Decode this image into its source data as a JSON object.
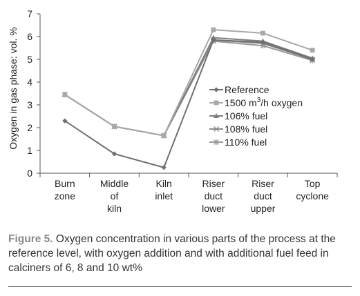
{
  "chart_data": {
    "type": "line",
    "ylabel": "Oxygen in gas phase: vol. %",
    "ylim": [
      0,
      7
    ],
    "yticks": [
      "0",
      "1",
      "2",
      "3",
      "4",
      "5",
      "6",
      "7"
    ],
    "categories": [
      [
        "Burn",
        "zone"
      ],
      [
        "Middle",
        "of",
        "kiln"
      ],
      [
        "Kiln",
        "inlet"
      ],
      [
        "Riser",
        "duct",
        "lower"
      ],
      [
        "Riser",
        "duct",
        "upper"
      ],
      [
        "Top",
        "cyclone"
      ]
    ],
    "legend_position": "center-right",
    "series": [
      {
        "name": "Reference",
        "legend_parts": [
          "Reference",
          "",
          ""
        ],
        "color": "#6f6f6f",
        "marker": "diamond",
        "values": [
          2.3,
          0.85,
          0.25,
          5.85,
          5.75,
          5.0
        ]
      },
      {
        "name": "1500 m3/h oxygen",
        "legend_parts": [
          "1500 m",
          "3",
          "/h oxygen"
        ],
        "color": "#a8a8a8",
        "marker": "square",
        "values": [
          3.45,
          2.05,
          1.65,
          6.3,
          6.15,
          5.4
        ]
      },
      {
        "name": "106% fuel",
        "legend_parts": [
          "106% fuel",
          "",
          ""
        ],
        "color": "#7d7d7d",
        "marker": "triangle",
        "values": [
          3.45,
          2.05,
          1.65,
          5.95,
          5.8,
          5.05
        ]
      },
      {
        "name": "108% fuel",
        "legend_parts": [
          "108% fuel",
          "",
          ""
        ],
        "color": "#8a8a8a",
        "marker": "x",
        "values": [
          3.45,
          2.05,
          1.65,
          5.85,
          5.7,
          5.0
        ]
      },
      {
        "name": "110% fuel",
        "legend_parts": [
          "110% fuel",
          "",
          ""
        ],
        "color": "#9a9a9a",
        "marker": "star",
        "values": [
          3.45,
          2.05,
          1.65,
          5.8,
          5.6,
          4.95
        ]
      }
    ]
  },
  "caption": {
    "label": "Figure 5.",
    "text": " Oxygen concentration in various parts of the process at the reference level, with oxygen addition and with additional fuel feed in calciners of 6, 8 and 10 wt%"
  }
}
